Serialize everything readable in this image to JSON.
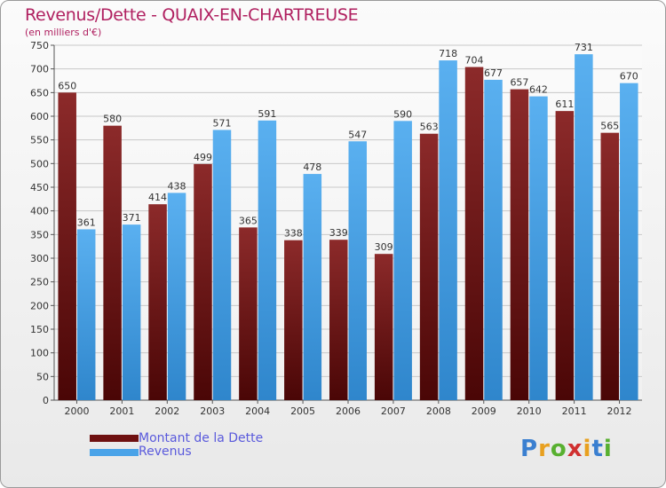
{
  "header": {
    "title": "Revenus/Dette - QUAIX-EN-CHARTREUSE",
    "subtitle": "(en milliers d'€)"
  },
  "legend": {
    "items": [
      {
        "label": "Montant de la Dette",
        "color": "#6e1010"
      },
      {
        "label": "Revenus",
        "color": "#4aa3e8"
      }
    ]
  },
  "brand": {
    "letters": [
      "P",
      "r",
      "o",
      "x",
      "i",
      "t",
      "i"
    ],
    "colors": [
      "#3a7fd0",
      "#e8a020",
      "#58b030",
      "#d03030",
      "#e8a020",
      "#3a7fd0",
      "#58b030"
    ]
  },
  "chart_data": {
    "type": "bar",
    "title": "Revenus/Dette - QUAIX-EN-CHARTREUSE",
    "ylabel": "(en milliers d'€)",
    "categories": [
      "2000",
      "2001",
      "2002",
      "2003",
      "2004",
      "2005",
      "2006",
      "2007",
      "2008",
      "2009",
      "2010",
      "2011",
      "2012"
    ],
    "series": [
      {
        "name": "Montant de la Dette",
        "color": "#6e1010",
        "values": [
          650,
          580,
          414,
          499,
          365,
          338,
          339,
          309,
          563,
          704,
          657,
          611,
          565
        ]
      },
      {
        "name": "Revenus",
        "color": "#4aa3e8",
        "values": [
          361,
          371,
          438,
          571,
          591,
          478,
          547,
          590,
          718,
          677,
          642,
          731,
          670
        ]
      }
    ],
    "ylim": [
      0,
      750
    ],
    "yticks": [
      0,
      50,
      100,
      150,
      200,
      250,
      300,
      350,
      400,
      450,
      500,
      550,
      600,
      650,
      700,
      750
    ],
    "grid": true,
    "legend_position": "bottom-left"
  }
}
